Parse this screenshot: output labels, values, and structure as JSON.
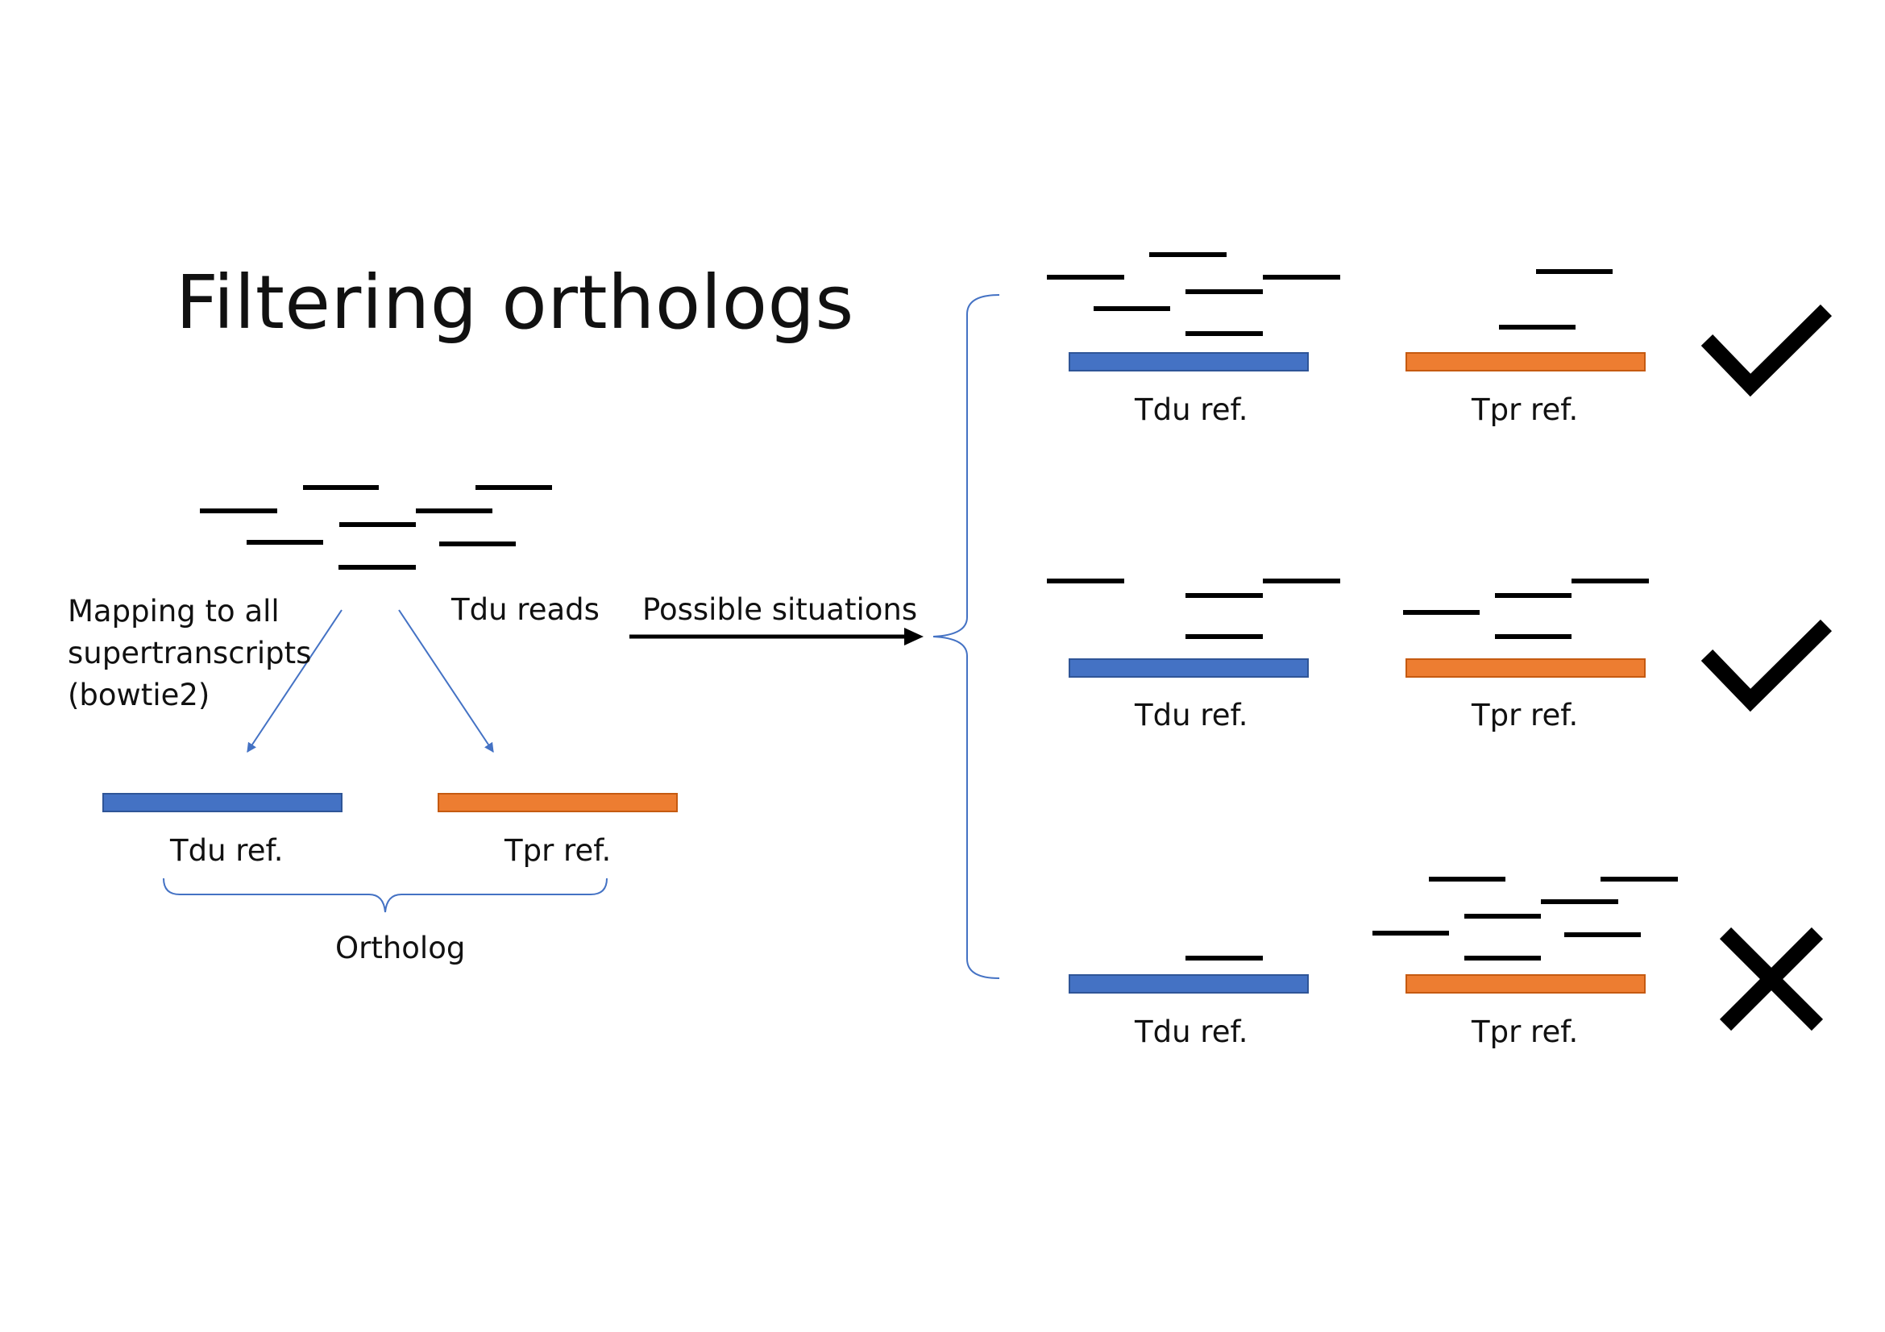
{
  "title": "Filtering orthologs",
  "colors": {
    "tdu": "#4472C4",
    "tpr": "#ED7D31",
    "read": "#000000",
    "arrow_thin": "#4472C4",
    "mark": "#000000"
  },
  "left_panel": {
    "mapping_lines": [
      "Mapping to all",
      "supertranscripts",
      "(bowtie2)"
    ],
    "reads_label": "Tdu reads",
    "tdu_label": "Tdu ref.",
    "tpr_label": "Tpr ref.",
    "ortholog_label": "Ortholog"
  },
  "arrow_label": "Possible situations",
  "situations": [
    {
      "tdu_label": "Tdu ref.",
      "tpr_label": "Tpr ref.",
      "outcome": "pass",
      "outcome_icon": "checkmark-icon"
    },
    {
      "tdu_label": "Tdu ref.",
      "tpr_label": "Tpr ref.",
      "outcome": "pass",
      "outcome_icon": "checkmark-icon"
    },
    {
      "tdu_label": "Tdu ref.",
      "tpr_label": "Tpr ref.",
      "outcome": "fail",
      "outcome_icon": "cross-icon"
    }
  ]
}
